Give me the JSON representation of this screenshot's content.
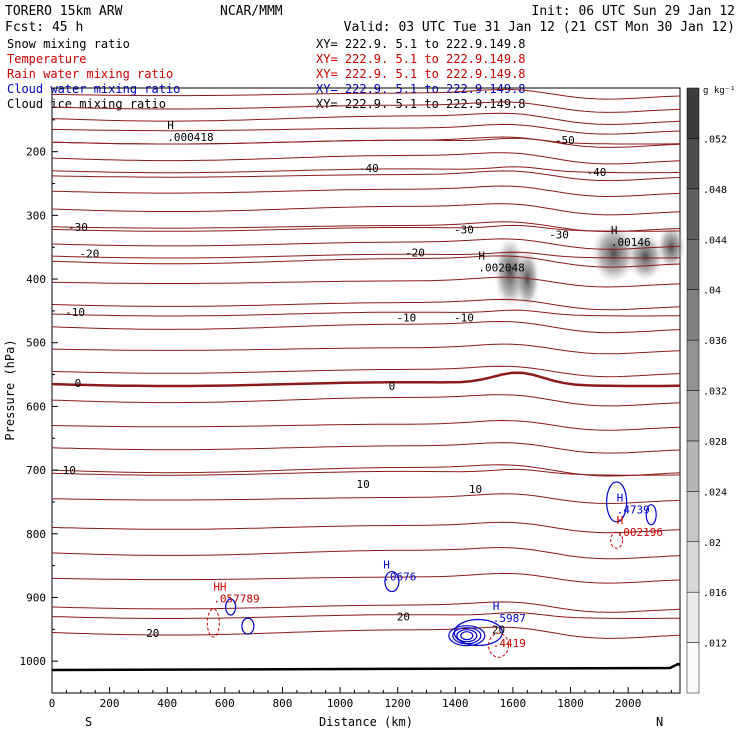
{
  "header": {
    "model": "TORERO  15km ARW",
    "org": "NCAR/MMM",
    "init": "Init: 06 UTC Sun 29 Jan 12",
    "fcst": "Fcst:   45 h",
    "valid": "Valid: 03 UTC Tue 31 Jan 12 (21 CST Mon 30 Jan 12)"
  },
  "fields": [
    {
      "name": "Snow mixing ratio",
      "xy": "XY= 222.9.  5.1 to 222.9.149.8",
      "color": "#000000"
    },
    {
      "name": "Temperature",
      "xy": "XY= 222.9.  5.1 to 222.9.149.8",
      "color": "#cc0000"
    },
    {
      "name": "Rain water mixing ratio",
      "xy": "XY= 222.9.  5.1 to 222.9.149.8",
      "color": "#cc0000"
    },
    {
      "name": "Cloud water mixing ratio",
      "xy": "XY= 222.9.  5.1 to 222.9.149.8",
      "color": "#0000cc"
    },
    {
      "name": "Cloud ice mixing ratio",
      "xy": "XY= 222.9.  5.1 to 222.9.149.8",
      "color": "#000000"
    }
  ],
  "colors": {
    "temperature": "#8b1a1a",
    "rain": "#cc0000",
    "cloud_water": "#0000cc",
    "snow": "#000000",
    "terrain": "#000000"
  },
  "chart_data": {
    "type": "cross-section",
    "xlabel": "Distance (km)",
    "ylabel": "Pressure (hPa)",
    "xlim": [
      0,
      2180
    ],
    "ylim": [
      1050,
      100
    ],
    "x_ticks": [
      0,
      200,
      400,
      600,
      800,
      1000,
      1200,
      1400,
      1600,
      1800,
      2000
    ],
    "y_ticks": [
      200,
      300,
      400,
      500,
      600,
      700,
      800,
      900,
      1000
    ],
    "left_end_label": "S",
    "right_end_label": "N",
    "colorbar": {
      "unit": "g kg⁻¹",
      "ticks": [
        ".012",
        ".016",
        ".02",
        ".024",
        ".028",
        ".032",
        ".036",
        ".04",
        ".044",
        ".048",
        ".052"
      ]
    },
    "temperature_contours": [
      {
        "value": -50,
        "label": "-50"
      },
      {
        "value": -40,
        "label": "-40"
      },
      {
        "value": -30,
        "label": "-30"
      },
      {
        "value": -20,
        "label": "-20"
      },
      {
        "value": -10,
        "label": "-10"
      },
      {
        "value": 0,
        "label": "0"
      },
      {
        "value": 10,
        "label": "10"
      },
      {
        "value": 20,
        "label": "20"
      }
    ],
    "maxima_labels": [
      {
        "marker": "H",
        "value": ".000418",
        "field": "snow",
        "x": 400,
        "p": 180
      },
      {
        "marker": "H",
        "value": ".002048",
        "field": "snow",
        "x": 1480,
        "p": 385
      },
      {
        "marker": "H",
        "value": ".00146",
        "field": "snow",
        "x": 1940,
        "p": 345
      },
      {
        "marker": "H",
        "value": ".0676",
        "field": "cloud_water",
        "x": 1150,
        "p": 870
      },
      {
        "marker": "H",
        "value": ".4739",
        "field": "cloud_water",
        "x": 1960,
        "p": 765
      },
      {
        "marker": "H",
        "value": ".002196",
        "field": "rain",
        "x": 1960,
        "p": 800
      },
      {
        "marker": "HH",
        "value": ".057789",
        "field": "rain",
        "x": 560,
        "p": 905
      },
      {
        "marker": "H",
        "value": ".5987",
        "field": "cloud_water",
        "x": 1530,
        "p": 935
      },
      {
        "marker": "",
        "value": ".4419",
        "field": "rain",
        "x": 1530,
        "p": 975
      }
    ],
    "grid": false
  }
}
